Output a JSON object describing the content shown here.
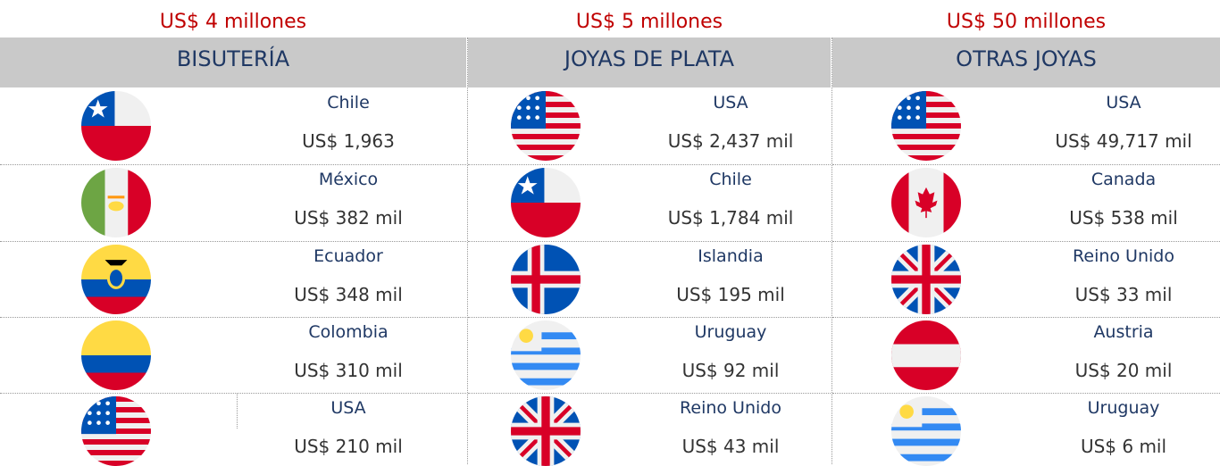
{
  "columns": [
    {
      "total": "US$ 4 millones",
      "title": "BISUTERÍA",
      "rows": [
        {
          "country": "Chile",
          "value": "US$ 1,963"
        },
        {
          "country": "México",
          "value": "US$ 382 mil"
        },
        {
          "country": "Ecuador",
          "value": "US$ 348 mil"
        },
        {
          "country": "Colombia",
          "value": "US$ 310 mil"
        },
        {
          "country": "USA",
          "value": "US$ 210 mil"
        }
      ]
    },
    {
      "total": "US$ 5 millones",
      "title": "JOYAS DE PLATA",
      "rows": [
        {
          "country": "USA",
          "value": "US$ 2,437 mil"
        },
        {
          "country": "Chile",
          "value": "US$ 1,784 mil"
        },
        {
          "country": "Islandia",
          "value": "US$ 195 mil"
        },
        {
          "country": "Uruguay",
          "value": "US$ 92 mil"
        },
        {
          "country": "Reino Unido",
          "value": "US$ 43 mil"
        }
      ]
    },
    {
      "total": "US$ 50 millones",
      "title": "OTRAS JOYAS",
      "rows": [
        {
          "country": "USA",
          "value": "US$ 49,717 mil"
        },
        {
          "country": "Canada",
          "value": "US$ 538 mil"
        },
        {
          "country": "Reino Unido",
          "value": "US$ 33 mil"
        },
        {
          "country": "Austria",
          "value": "US$ 20 mil"
        },
        {
          "country": "Uruguay",
          "value": "US$ 6 mil"
        }
      ]
    }
  ]
}
